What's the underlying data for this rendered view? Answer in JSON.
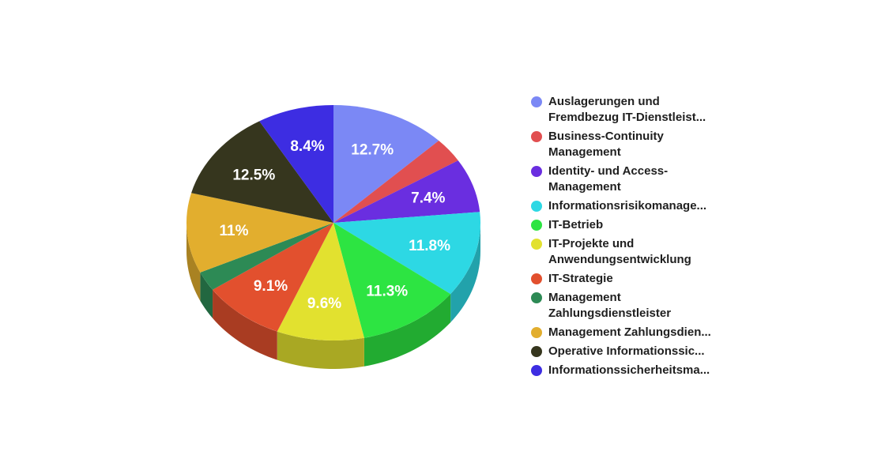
{
  "chart_data": {
    "type": "pie",
    "title": "",
    "slices": [
      {
        "label": "Auslagerungen und\nFremdbezug IT-Dienstleist...",
        "value": 12.7,
        "display": "12.7%",
        "color": "#7b88f5",
        "side": "#5c66b8"
      },
      {
        "label": "Business-Continuity\nManagement",
        "value": 3.4,
        "display": "",
        "color": "#e14f50",
        "side": "#a93b3c"
      },
      {
        "label": "Identity- und Access-\nManagement",
        "value": 7.4,
        "display": "7.4%",
        "color": "#6a2ee0",
        "side": "#4f22a8"
      },
      {
        "label": "Informationsrisikomanage...",
        "value": 11.8,
        "display": "11.8%",
        "color": "#2dd8e4",
        "side": "#22a2ab"
      },
      {
        "label": "IT-Betrieb",
        "value": 11.3,
        "display": "11.3%",
        "color": "#2de442",
        "side": "#22ab31"
      },
      {
        "label": "IT-Projekte und\nAnwendungsentwicklung",
        "value": 9.6,
        "display": "9.6%",
        "color": "#e2e12f",
        "side": "#a9a823"
      },
      {
        "label": "IT-Strategie",
        "value": 9.1,
        "display": "9.1%",
        "color": "#e2502e",
        "side": "#a93c22"
      },
      {
        "label": "Management\nZahlungsdienstleister",
        "value": 2.7,
        "display": "",
        "color": "#2d8a55",
        "side": "#226740"
      },
      {
        "label": "Management Zahlungsdien...",
        "value": 11.0,
        "display": "11%",
        "color": "#e2ae2e",
        "side": "#a98222"
      },
      {
        "label": "Operative Informationssic...",
        "value": 12.5,
        "display": "12.5%",
        "color": "#36361e",
        "side": "#282816"
      },
      {
        "label": "Informationssicherheitsma...",
        "value": 8.4,
        "display": "8.4%",
        "color": "#3d2de2",
        "side": "#2e22a9"
      }
    ],
    "legend_position": "right"
  }
}
